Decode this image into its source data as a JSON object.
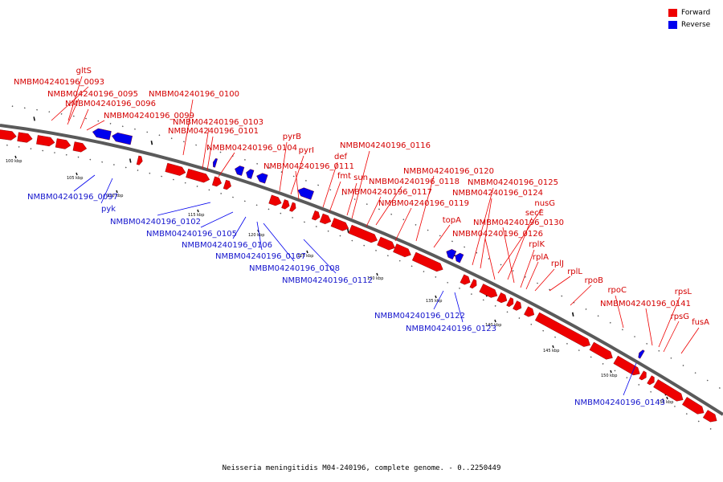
{
  "legend": {
    "forward": {
      "label": "Forward",
      "color": "#ee0000"
    },
    "reverse": {
      "label": "Reverse",
      "color": "#0000ee"
    }
  },
  "caption": "Neisseria meningitidis M04-240196, complete genome. - 0..2250449",
  "ticks": [
    "100 kbp",
    "105 kbp",
    "110 kbp",
    "115 kbp",
    "120 kbp",
    "125 kbp",
    "130 kbp",
    "135 kbp",
    "140 kbp",
    "145 kbp",
    "150 kbp",
    "155 kbp"
  ],
  "forward_genes": [
    "gltS",
    "NMBM04240196_0093",
    "NMBM04240196_0095",
    "NMBM04240196_0096",
    "NMBM04240196_0099",
    "NMBM04240196_0100",
    "NMBM04240196_0103",
    "NMBM04240196_0101",
    "NMBM04240196_0104",
    "pyrB",
    "pyrI",
    "NMBM04240196_0111",
    "def",
    "fmt",
    "sun",
    "NMBM04240196_0116",
    "NMBM04240196_0118",
    "NMBM04240196_0117",
    "NMBM04240196_0120",
    "NMBM04240196_0119",
    "topA",
    "NMBM04240196_0125",
    "NMBM04240196_0124",
    "nusG",
    "secE",
    "NMBM04240196_0130",
    "NMBM04240196_0126",
    "rplK",
    "rplA",
    "rplJ",
    "rplL",
    "rpoB",
    "rpoC",
    "NMBM04240196_0141",
    "rpsL",
    "rpsG",
    "fusA"
  ],
  "reverse_genes": [
    "NMBM04240196_0097",
    "pyk",
    "NMBM04240196_0102",
    "NMBM04240196_0105",
    "NMBM04240196_0106",
    "NMBM04240196_0107",
    "NMBM04240196_0108",
    "NMBM04240196_0112",
    "NMBM04240196_0122",
    "NMBM04240196_0123",
    "NMBM04240196_0143"
  ]
}
